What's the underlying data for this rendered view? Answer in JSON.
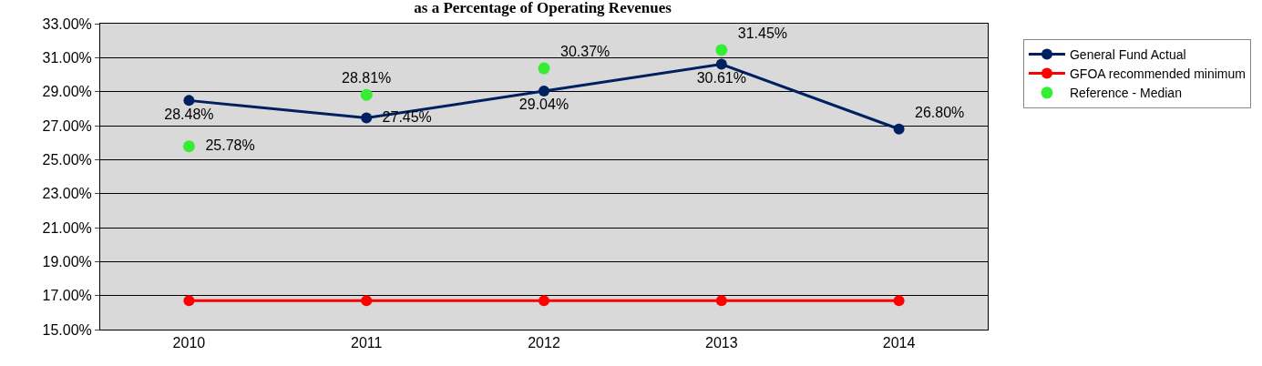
{
  "chart_data": {
    "type": "line",
    "title": "as a Percentage of Operating Revenues",
    "categories": [
      "2010",
      "2011",
      "2012",
      "2013",
      "2014"
    ],
    "series": [
      {
        "name": "General Fund Actual",
        "color": "#002060",
        "values": [
          28.48,
          27.45,
          29.04,
          30.61,
          26.8
        ],
        "value_labels": [
          "28.48%",
          "27.45%",
          "29.04%",
          "30.61%",
          "26.80%"
        ]
      },
      {
        "name": "GFOA recommended minimum",
        "color": "#ff0000",
        "values": [
          16.7,
          16.7,
          16.7,
          16.7,
          16.7
        ]
      },
      {
        "name": "Reference - Median",
        "type": "scatter",
        "color": "#33ee33",
        "values": [
          25.78,
          28.81,
          30.37,
          31.45,
          null
        ],
        "value_labels": [
          "25.78%",
          "28.81%",
          "30.37%",
          "31.45%",
          null
        ]
      }
    ],
    "ylim": [
      15,
      33
    ],
    "yticks": [
      {
        "value": 15,
        "label": "15.00%"
      },
      {
        "value": 17,
        "label": "17.00%"
      },
      {
        "value": 19,
        "label": "19.00%"
      },
      {
        "value": 21,
        "label": "21.00%"
      },
      {
        "value": 23,
        "label": "23.00%"
      },
      {
        "value": 25,
        "label": "25.00%"
      },
      {
        "value": 27,
        "label": "27.00%"
      },
      {
        "value": 29,
        "label": "29.00%"
      },
      {
        "value": 31,
        "label": "31.00%"
      },
      {
        "value": 33,
        "label": "33.00%"
      }
    ],
    "grid": "y",
    "legend": "right",
    "marker": "circle",
    "line_style": "solid"
  }
}
